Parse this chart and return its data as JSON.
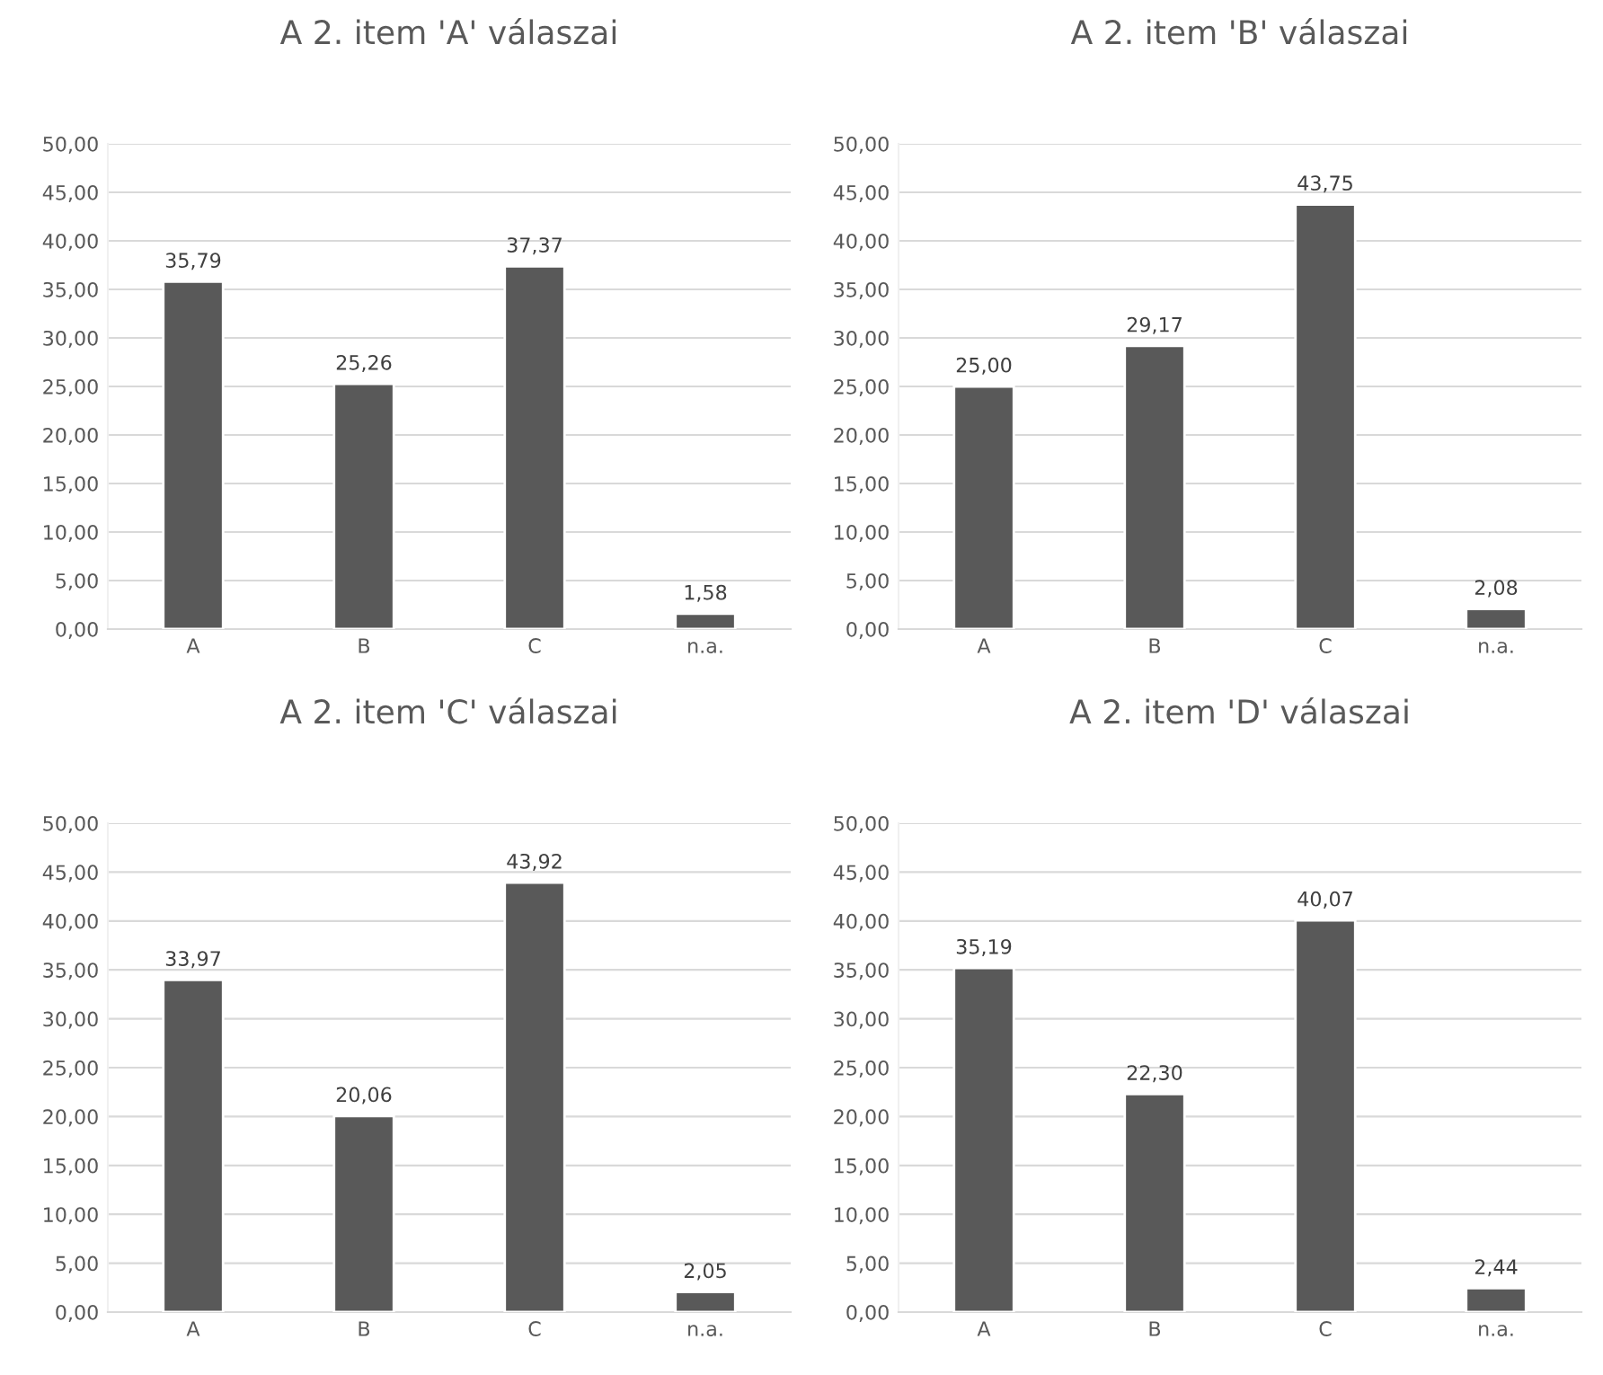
{
  "chart_data": [
    {
      "type": "bar",
      "title": "A 2. item 'A' válaszai",
      "categories": [
        "A",
        "B",
        "C",
        "n.a."
      ],
      "values": [
        35.79,
        25.26,
        37.37,
        1.58
      ],
      "value_labels": [
        "35,79",
        "25,26",
        "37,37",
        "1,58"
      ],
      "color": "#595959",
      "ylim": [
        0,
        50
      ],
      "yticks": [
        {
          "value": 0,
          "label": "0,00"
        },
        {
          "value": 5,
          "label": "5,00"
        },
        {
          "value": 10,
          "label": "10,00"
        },
        {
          "value": 15,
          "label": "15,00"
        },
        {
          "value": 20,
          "label": "20,00"
        },
        {
          "value": 25,
          "label": "25,00"
        },
        {
          "value": 30,
          "label": "30,00"
        },
        {
          "value": 35,
          "label": "35,00"
        },
        {
          "value": 40,
          "label": "40,00"
        },
        {
          "value": 45,
          "label": "45,00"
        },
        {
          "value": 50,
          "label": "50,00"
        }
      ],
      "grid": "y"
    },
    {
      "type": "bar",
      "title": "A 2. item 'B' válaszai",
      "categories": [
        "A",
        "B",
        "C",
        "n.a."
      ],
      "values": [
        25.0,
        29.17,
        43.75,
        2.08
      ],
      "value_labels": [
        "25,00",
        "29,17",
        "43,75",
        "2,08"
      ],
      "color": "#595959",
      "ylim": [
        0,
        50
      ],
      "yticks": [
        {
          "value": 0,
          "label": "0,00"
        },
        {
          "value": 5,
          "label": "5,00"
        },
        {
          "value": 10,
          "label": "10,00"
        },
        {
          "value": 15,
          "label": "15,00"
        },
        {
          "value": 20,
          "label": "20,00"
        },
        {
          "value": 25,
          "label": "25,00"
        },
        {
          "value": 30,
          "label": "30,00"
        },
        {
          "value": 35,
          "label": "35,00"
        },
        {
          "value": 40,
          "label": "40,00"
        },
        {
          "value": 45,
          "label": "45,00"
        },
        {
          "value": 50,
          "label": "50,00"
        }
      ],
      "grid": "y"
    },
    {
      "type": "bar",
      "title": "A 2. item 'C' válaszai",
      "categories": [
        "A",
        "B",
        "C",
        "n.a."
      ],
      "values": [
        33.97,
        20.06,
        43.92,
        2.05
      ],
      "value_labels": [
        "33,97",
        "20,06",
        "43,92",
        "2,05"
      ],
      "color": "#595959",
      "ylim": [
        0,
        50
      ],
      "yticks": [
        {
          "value": 0,
          "label": "0,00"
        },
        {
          "value": 5,
          "label": "5,00"
        },
        {
          "value": 10,
          "label": "10,00"
        },
        {
          "value": 15,
          "label": "15,00"
        },
        {
          "value": 20,
          "label": "20,00"
        },
        {
          "value": 25,
          "label": "25,00"
        },
        {
          "value": 30,
          "label": "30,00"
        },
        {
          "value": 35,
          "label": "35,00"
        },
        {
          "value": 40,
          "label": "40,00"
        },
        {
          "value": 45,
          "label": "45,00"
        },
        {
          "value": 50,
          "label": "50,00"
        }
      ],
      "grid": "y"
    },
    {
      "type": "bar",
      "title": "A 2. item 'D' válaszai",
      "categories": [
        "A",
        "B",
        "C",
        "n.a."
      ],
      "values": [
        35.19,
        22.3,
        40.07,
        2.44
      ],
      "value_labels": [
        "35,19",
        "22,30",
        "40,07",
        "2,44"
      ],
      "color": "#595959",
      "ylim": [
        0,
        50
      ],
      "yticks": [
        {
          "value": 0,
          "label": "0,00"
        },
        {
          "value": 5,
          "label": "5,00"
        },
        {
          "value": 10,
          "label": "10,00"
        },
        {
          "value": 15,
          "label": "15,00"
        },
        {
          "value": 20,
          "label": "20,00"
        },
        {
          "value": 25,
          "label": "25,00"
        },
        {
          "value": 30,
          "label": "30,00"
        },
        {
          "value": 35,
          "label": "35,00"
        },
        {
          "value": 40,
          "label": "40,00"
        },
        {
          "value": 45,
          "label": "45,00"
        },
        {
          "value": 50,
          "label": "50,00"
        }
      ],
      "grid": "y"
    }
  ]
}
